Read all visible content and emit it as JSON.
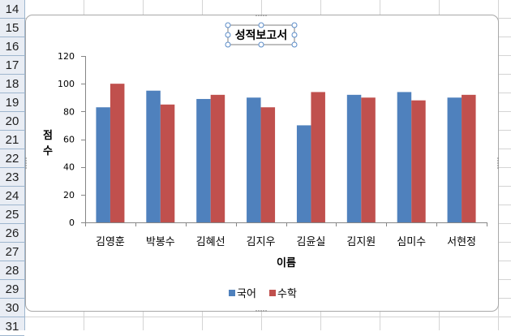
{
  "spreadsheet": {
    "row_headers": [
      "14",
      "15",
      "16",
      "17",
      "18",
      "19",
      "20",
      "21",
      "22",
      "23",
      "24",
      "25",
      "26",
      "27",
      "28",
      "29",
      "30",
      "31"
    ]
  },
  "colors": {
    "series_1": "#4f81bd",
    "series_2": "#c0504d",
    "axis": "#868686",
    "grid": "#d9d9d9"
  },
  "chart_data": {
    "type": "bar",
    "title": "성적보고서",
    "xlabel": "이름",
    "ylabel": "점수",
    "ylim": [
      0,
      120
    ],
    "yticks": [
      0,
      20,
      40,
      60,
      80,
      100,
      120
    ],
    "grid": false,
    "legend": "bottom",
    "categories": [
      "김영훈",
      "박봉수",
      "김혜선",
      "김지우",
      "김윤실",
      "김지원",
      "심미수",
      "서현정"
    ],
    "series": [
      {
        "name": "국어",
        "values": [
          83,
          95,
          89,
          90,
          70,
          92,
          94,
          90
        ]
      },
      {
        "name": "수학",
        "values": [
          100,
          85,
          92,
          83,
          94,
          90,
          88,
          92
        ]
      }
    ]
  }
}
